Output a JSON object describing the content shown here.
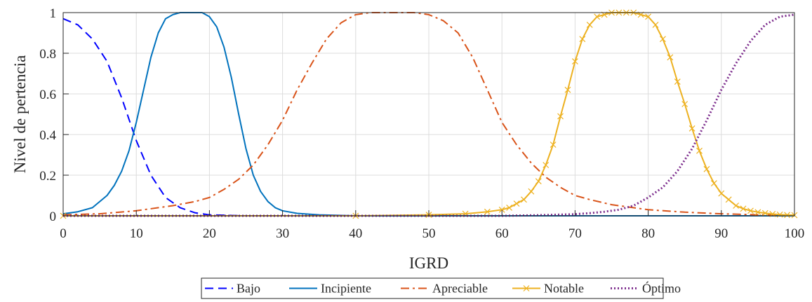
{
  "chart_data": {
    "type": "line",
    "title": "",
    "xlabel": "IGRD",
    "ylabel": "Nivel de pertencia",
    "xlim": [
      0,
      100
    ],
    "ylim": [
      0,
      1
    ],
    "xticks": [
      0,
      10,
      20,
      30,
      40,
      50,
      60,
      70,
      80,
      90,
      100
    ],
    "yticks": [
      0,
      0.2,
      0.4,
      0.6,
      0.8,
      1
    ],
    "xtick_labels": [
      "0",
      "10",
      "20",
      "30",
      "40",
      "50",
      "60",
      "70",
      "80",
      "90",
      "100"
    ],
    "ytick_labels": [
      "0",
      "0.2",
      "0.4",
      "0.6",
      "0.8",
      "1"
    ],
    "grid": true,
    "legend": "bottom-center",
    "series": [
      {
        "name": "Bajo",
        "color": "#0000ff",
        "style": "dashed",
        "x": [
          0,
          2,
          4,
          6,
          8,
          10,
          12,
          14,
          16,
          18,
          20,
          25,
          30,
          100
        ],
        "y": [
          0.97,
          0.94,
          0.87,
          0.76,
          0.58,
          0.37,
          0.2,
          0.09,
          0.04,
          0.015,
          0.005,
          0.0,
          0.0,
          0.0
        ]
      },
      {
        "name": "Incipiente",
        "color": "#0072bd",
        "style": "solid",
        "x": [
          0,
          2,
          4,
          6,
          7,
          8,
          9,
          10,
          11,
          12,
          13,
          14,
          15,
          16,
          17,
          18,
          19,
          20,
          21,
          22,
          23,
          24,
          25,
          26,
          27,
          28,
          29,
          30,
          32,
          35,
          40,
          50,
          100
        ],
        "y": [
          0.01,
          0.02,
          0.04,
          0.1,
          0.15,
          0.22,
          0.32,
          0.46,
          0.62,
          0.78,
          0.9,
          0.97,
          0.99,
          1.0,
          1.0,
          1.0,
          1.0,
          0.98,
          0.93,
          0.83,
          0.68,
          0.5,
          0.33,
          0.2,
          0.12,
          0.07,
          0.04,
          0.025,
          0.012,
          0.005,
          0.0,
          0.0,
          0.0
        ]
      },
      {
        "name": "Apreciable",
        "color": "#d95319",
        "style": "dashdot",
        "x": [
          0,
          5,
          10,
          15,
          18,
          20,
          22,
          24,
          26,
          28,
          30,
          32,
          34,
          36,
          38,
          40,
          42,
          44,
          46,
          48,
          50,
          52,
          54,
          56,
          58,
          60,
          62,
          64,
          66,
          68,
          70,
          72,
          75,
          80,
          85,
          90,
          95,
          100
        ],
        "y": [
          0.005,
          0.01,
          0.025,
          0.05,
          0.07,
          0.09,
          0.13,
          0.18,
          0.25,
          0.35,
          0.47,
          0.62,
          0.75,
          0.87,
          0.95,
          0.99,
          1.0,
          1.0,
          1.0,
          1.0,
          0.99,
          0.96,
          0.9,
          0.78,
          0.62,
          0.46,
          0.35,
          0.26,
          0.19,
          0.14,
          0.1,
          0.08,
          0.055,
          0.03,
          0.018,
          0.01,
          0.005,
          0.003
        ]
      },
      {
        "name": "Notable",
        "color": "#edb120",
        "style": "solid-x",
        "x": [
          0,
          40,
          50,
          55,
          58,
          60,
          61,
          62,
          63,
          64,
          65,
          66,
          67,
          68,
          69,
          70,
          71,
          72,
          73,
          74,
          75,
          76,
          77,
          78,
          79,
          80,
          81,
          82,
          83,
          84,
          85,
          86,
          87,
          88,
          89,
          90,
          91,
          92,
          93,
          94,
          95,
          96,
          97,
          98,
          99,
          100
        ],
        "y": [
          0.0,
          0.0,
          0.005,
          0.01,
          0.02,
          0.03,
          0.04,
          0.06,
          0.08,
          0.12,
          0.17,
          0.25,
          0.35,
          0.49,
          0.62,
          0.76,
          0.87,
          0.94,
          0.98,
          0.99,
          1.0,
          1.0,
          1.0,
          1.0,
          0.99,
          0.98,
          0.94,
          0.87,
          0.78,
          0.66,
          0.55,
          0.43,
          0.32,
          0.23,
          0.16,
          0.11,
          0.08,
          0.05,
          0.035,
          0.025,
          0.018,
          0.013,
          0.009,
          0.006,
          0.004,
          0.003
        ]
      },
      {
        "name": "Óptimo",
        "color": "#7e2f8e",
        "style": "dotted",
        "x": [
          0,
          60,
          65,
          70,
          72,
          74,
          76,
          78,
          80,
          82,
          84,
          86,
          88,
          90,
          92,
          94,
          96,
          98,
          100
        ],
        "y": [
          0.0,
          0.0,
          0.003,
          0.008,
          0.013,
          0.02,
          0.03,
          0.05,
          0.09,
          0.14,
          0.22,
          0.33,
          0.47,
          0.62,
          0.75,
          0.86,
          0.94,
          0.98,
          0.99
        ]
      }
    ]
  }
}
